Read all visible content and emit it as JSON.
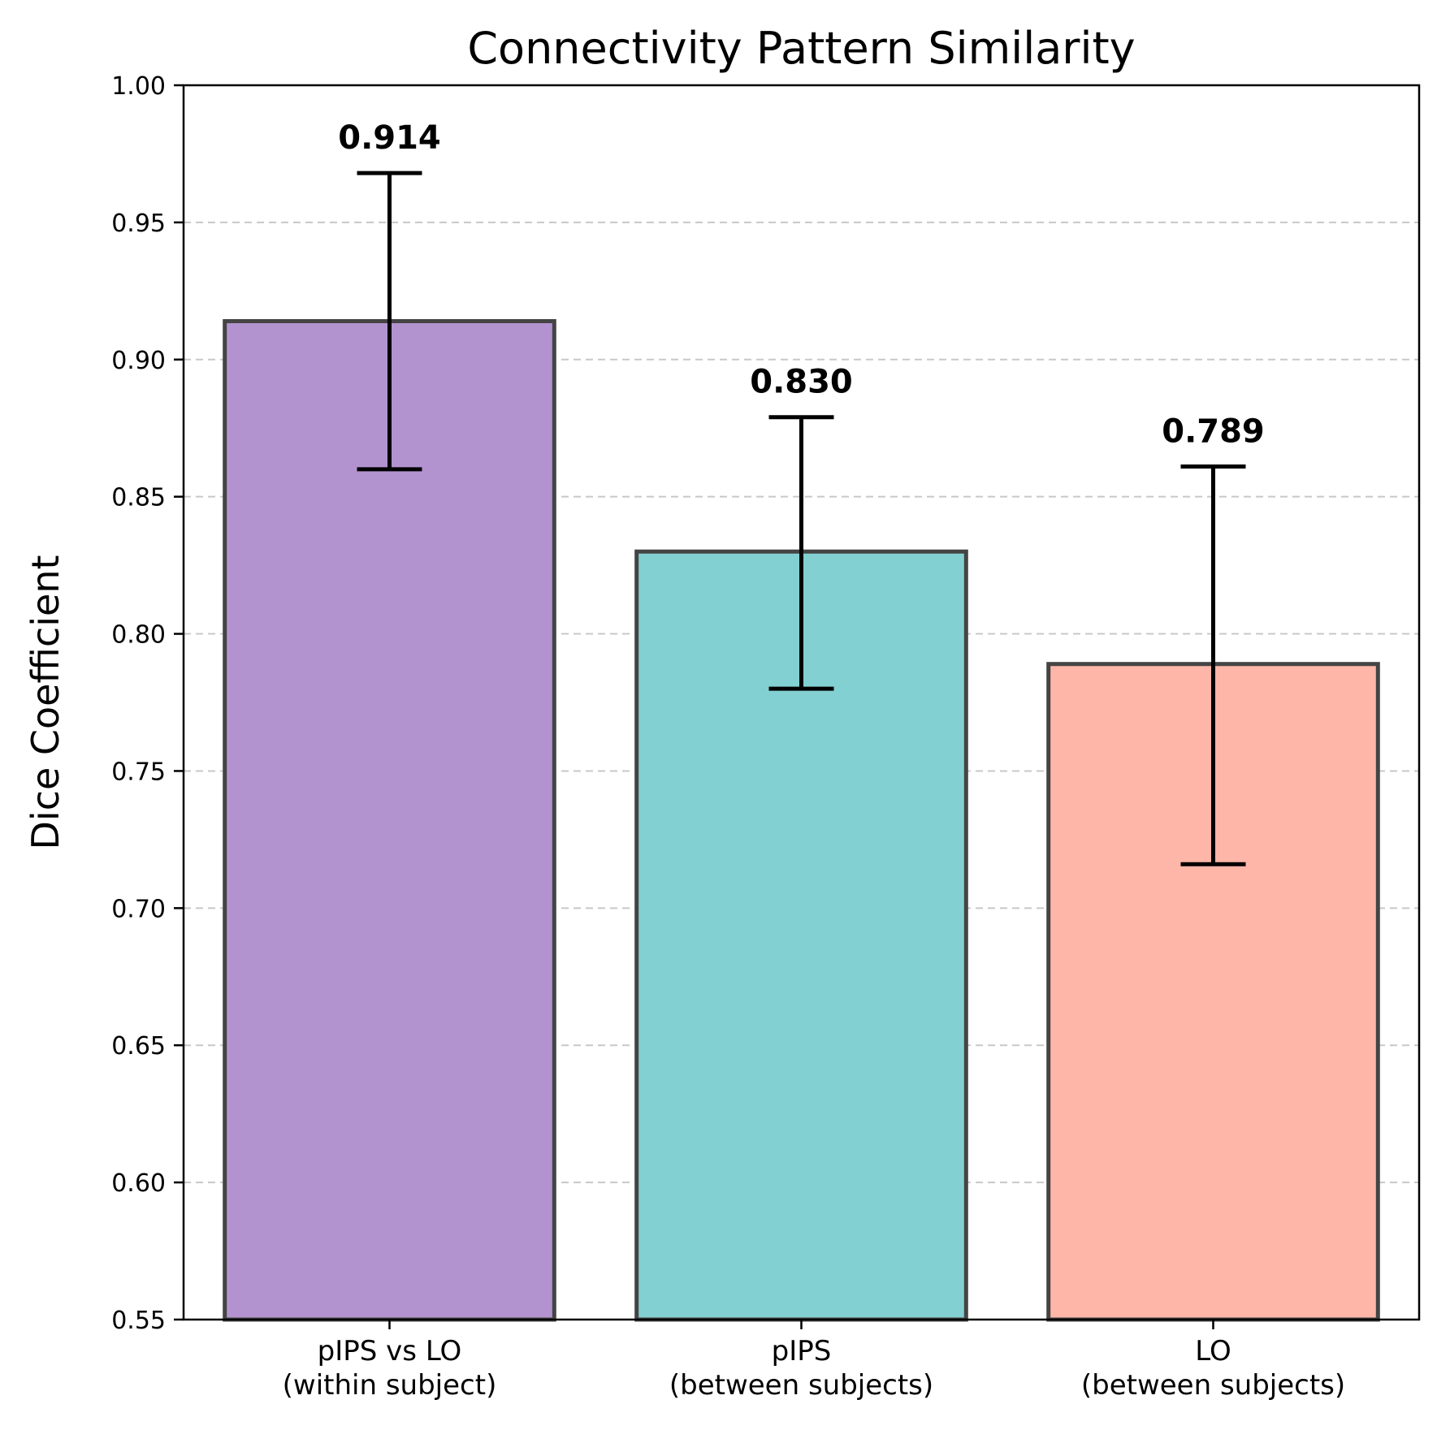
{
  "chart_data": {
    "type": "bar",
    "title": "Connectivity Pattern Similarity",
    "xlabel": "",
    "ylabel": "Dice Coefficient",
    "ylim": [
      0.55,
      1.0
    ],
    "yticks": [
      "0.55",
      "0.60",
      "0.65",
      "0.70",
      "0.75",
      "0.80",
      "0.85",
      "0.90",
      "0.95",
      "1.00"
    ],
    "grid": "horizontal-dashed",
    "categories": [
      {
        "line1": "pIPS vs LO",
        "line2": "(within subject)"
      },
      {
        "line1": "pIPS",
        "line2": "(between subjects)"
      },
      {
        "line1": "LO",
        "line2": "(between subjects)"
      }
    ],
    "values": [
      0.914,
      0.83,
      0.789
    ],
    "value_labels": [
      "0.914",
      "0.830",
      "0.789"
    ],
    "error_low": [
      0.86,
      0.78,
      0.716
    ],
    "error_high": [
      0.968,
      0.879,
      0.861
    ],
    "colors": [
      "#b393cf",
      "#83d0d2",
      "#fdb6a8"
    ],
    "edge_color": "#444444"
  }
}
